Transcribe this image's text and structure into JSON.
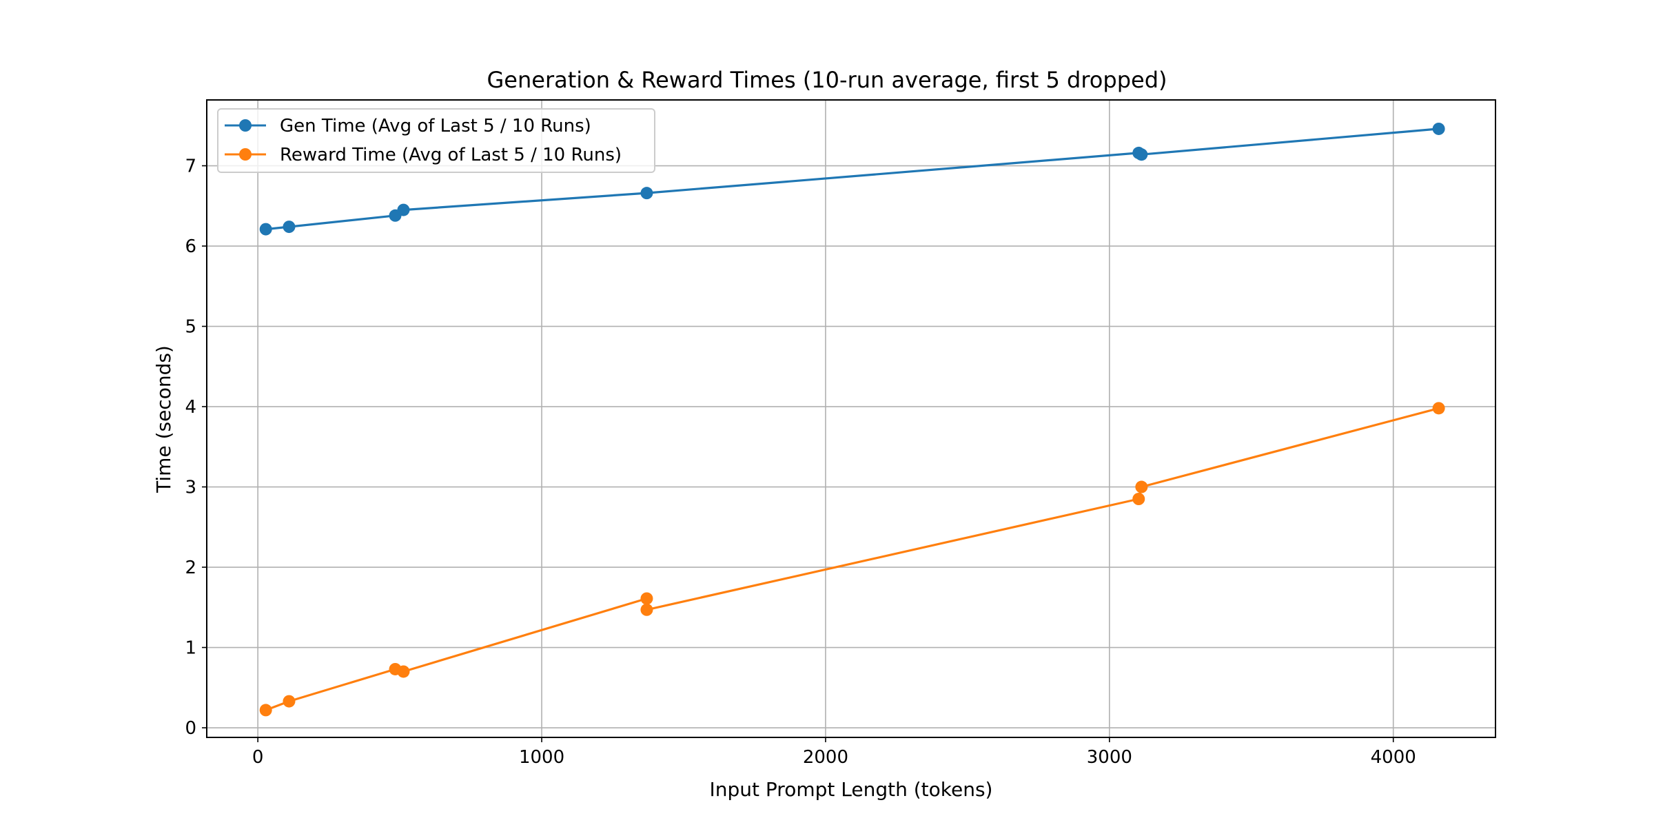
{
  "chart_data": {
    "type": "line",
    "title": "Generation & Reward Times (10-run average, first 5 dropped)",
    "xlabel": "Input Prompt Length (tokens)",
    "ylabel": "Time (seconds)",
    "xlim": [
      -180,
      4360
    ],
    "ylim": [
      -0.12,
      7.82
    ],
    "xticks": [
      0,
      1000,
      2000,
      3000,
      4000
    ],
    "yticks": [
      0,
      1,
      2,
      3,
      4,
      5,
      6,
      7
    ],
    "grid": true,
    "legend_position": "top-left",
    "series": [
      {
        "name": "Gen Time (Avg of Last 5 / 10 Runs)",
        "color": "#1f77b4",
        "marker": "circle",
        "x": [
          28,
          110,
          484,
          513,
          1370,
          3103,
          3113,
          4160
        ],
        "y": [
          6.21,
          6.24,
          6.38,
          6.45,
          6.66,
          7.16,
          7.14,
          7.46
        ]
      },
      {
        "name": "Reward Time (Avg of Last 5 / 10 Runs)",
        "color": "#ff7f0e",
        "marker": "circle",
        "x": [
          28,
          110,
          484,
          513,
          1370,
          1370,
          3103,
          3113,
          4160
        ],
        "y": [
          0.22,
          0.33,
          0.73,
          0.7,
          1.61,
          1.47,
          2.85,
          3.0,
          3.98
        ]
      }
    ]
  }
}
